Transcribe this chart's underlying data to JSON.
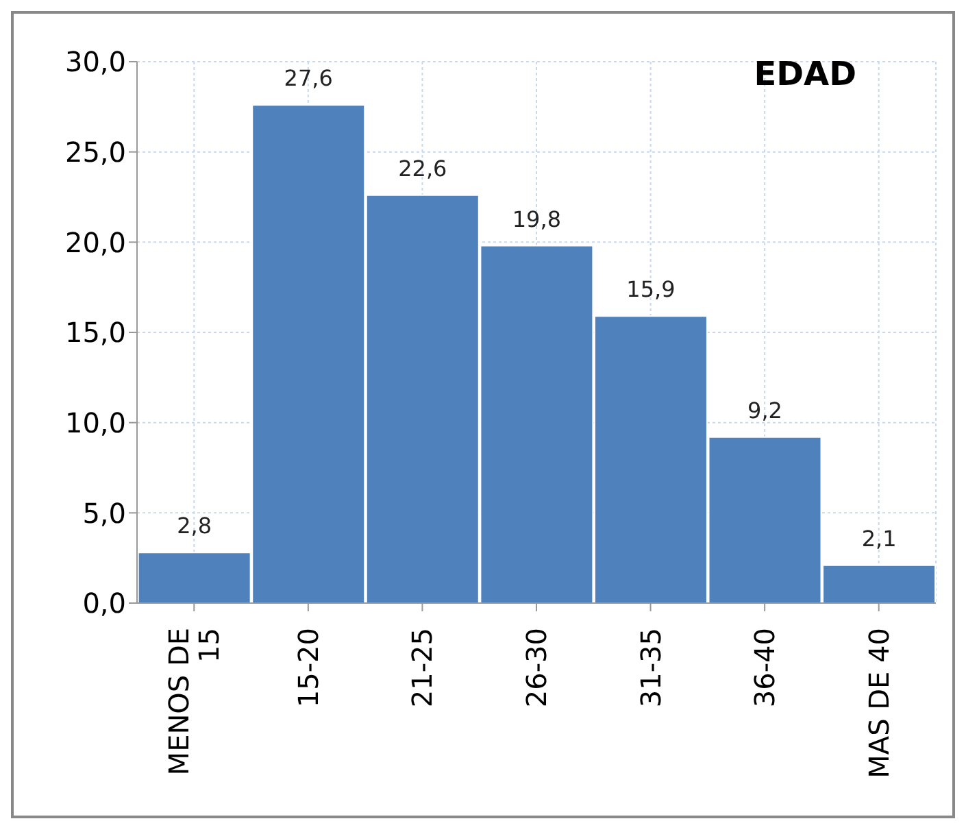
{
  "chart_data": {
    "type": "bar",
    "title": "EDAD",
    "categories": [
      "MENOS DE 15",
      "15-20",
      "21-25",
      "26-30",
      "31-35",
      "36-40",
      "MAS DE 40"
    ],
    "values": [
      2.8,
      27.6,
      22.6,
      19.8,
      15.9,
      9.2,
      2.1
    ],
    "value_labels": [
      "2,8",
      "27,6",
      "22,6",
      "19,8",
      "15,9",
      "9,2",
      "2,1"
    ],
    "color": "#4f81bd",
    "ylim": [
      0,
      30
    ],
    "yticks": [
      {
        "value": 0,
        "label": "0,0"
      },
      {
        "value": 5,
        "label": "5,0"
      },
      {
        "value": 10,
        "label": "10,0"
      },
      {
        "value": 15,
        "label": "15,0"
      },
      {
        "value": 20,
        "label": "20,0"
      },
      {
        "value": 25,
        "label": "25,0"
      },
      {
        "value": 30,
        "label": "30,0"
      }
    ],
    "grid": true
  }
}
